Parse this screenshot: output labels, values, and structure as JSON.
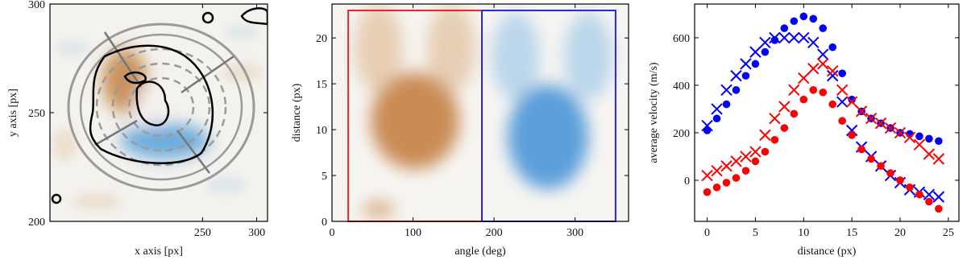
{
  "chart_data": [
    {
      "type": "image",
      "xlabel": "x axis [px]",
      "ylabel": "y axis [px]",
      "xlim": [
        109,
        310
      ],
      "ylim": [
        200,
        300
      ],
      "xticks": [
        250,
        300
      ],
      "yticks": [
        200,
        250,
        300
      ]
    },
    {
      "type": "heatmap",
      "xlabel": "angle (deg)",
      "ylabel": "distance (px)",
      "xlim": [
        0,
        366
      ],
      "ylim": [
        0,
        23.7
      ],
      "xticks": [
        0,
        100,
        200,
        300
      ],
      "yticks": [
        0,
        5,
        10,
        15,
        20
      ],
      "boxes": [
        {
          "color": "#e8262a",
          "x": [
            20,
            185
          ],
          "y": [
            0,
            23
          ]
        },
        {
          "color": "#2a2ad0",
          "x": [
            185,
            350
          ],
          "y": [
            0,
            23
          ]
        }
      ]
    },
    {
      "type": "scatter",
      "xlabel": "distance (px)",
      "ylabel": "average velocity (m/s)",
      "xlim": [
        -1.3,
        26.1
      ],
      "ylim": [
        -173,
        742
      ],
      "xticks": [
        0,
        5,
        10,
        15,
        20,
        25
      ],
      "yticks": [
        0,
        200,
        400,
        600
      ],
      "x": [
        0,
        1,
        2,
        3,
        4,
        5,
        6,
        7,
        8,
        9,
        10,
        11,
        12,
        13,
        14,
        15,
        16,
        17,
        18,
        19,
        20,
        21,
        22,
        23,
        24
      ],
      "series": [
        {
          "color": "#0000ff",
          "marker": "o",
          "values": [
            210,
            260,
            320,
            380,
            440,
            490,
            540,
            590,
            640,
            670,
            690,
            680,
            640,
            560,
            450,
            340,
            290,
            260,
            240,
            220,
            200,
            195,
            185,
            175,
            165
          ]
        },
        {
          "color": "#0000ff",
          "marker": "x",
          "values": [
            230,
            300,
            380,
            440,
            490,
            540,
            580,
            600,
            600,
            600,
            600,
            580,
            530,
            440,
            330,
            210,
            140,
            100,
            60,
            20,
            -10,
            -40,
            -50,
            -60,
            -70
          ]
        },
        {
          "color": "#ff0000",
          "marker": "o",
          "values": [
            -50,
            -30,
            -10,
            10,
            40,
            80,
            120,
            170,
            220,
            280,
            340,
            380,
            370,
            320,
            250,
            190,
            130,
            90,
            60,
            30,
            0,
            -30,
            -60,
            -90,
            -120
          ]
        },
        {
          "color": "#ff0000",
          "marker": "x",
          "values": [
            20,
            40,
            60,
            80,
            100,
            120,
            190,
            260,
            310,
            380,
            430,
            470,
            490,
            460,
            380,
            330,
            290,
            260,
            240,
            220,
            200,
            180,
            150,
            110,
            90
          ]
        }
      ]
    }
  ]
}
